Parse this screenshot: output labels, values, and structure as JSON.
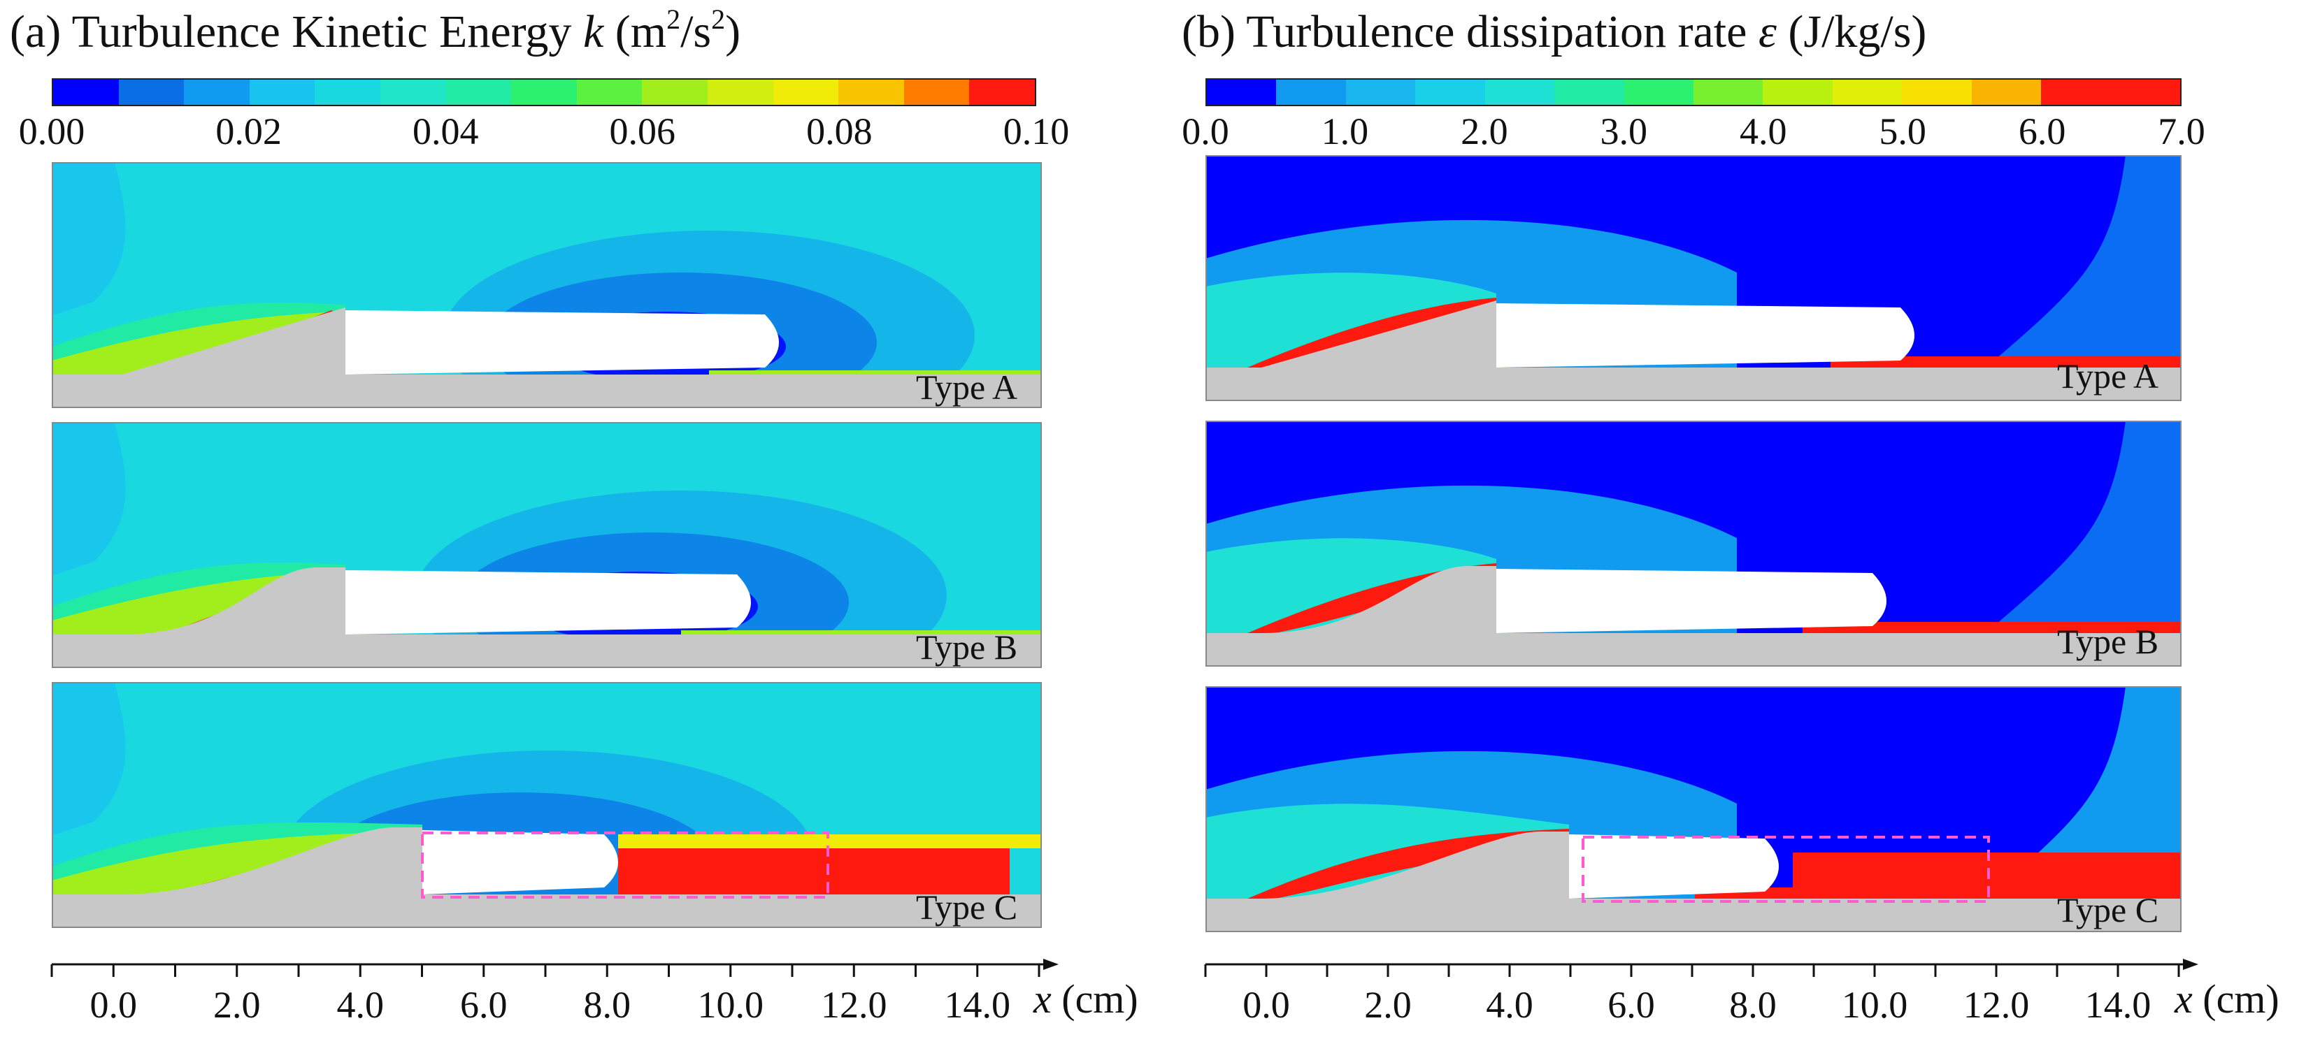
{
  "chart_data": [
    {
      "type": "heatmap",
      "panel": "(a)",
      "title_text": "Turbulence Kinetic Energy",
      "title_symbol": "k",
      "title_unit": "(m2/s2)",
      "colorbar": {
        "range": [
          0.0,
          0.1
        ],
        "levels": 15,
        "tick_labels": [
          "0.00",
          "0.02",
          "0.04",
          "0.06",
          "0.08",
          "0.10"
        ],
        "tick_values": [
          0.0,
          0.02,
          0.04,
          0.06,
          0.08,
          0.1
        ],
        "colors": [
          "#0000ff",
          "#0a6fe6",
          "#109bf0",
          "#19c3f0",
          "#1ad8e0",
          "#1fe6c8",
          "#20eaa4",
          "#2cf070",
          "#5cf040",
          "#a2ee1c",
          "#d2ee10",
          "#f0ec08",
          "#f8c400",
          "#ff7b00",
          "#ff1a10"
        ]
      },
      "cases": [
        "Type A",
        "Type B",
        "Type C"
      ],
      "xaxis": {
        "label": "x",
        "unit": "(cm)",
        "range": [
          -1.0,
          15.0
        ],
        "tick_labels": [
          "0.0",
          "2.0",
          "4.0",
          "6.0",
          "8.0",
          "10.0",
          "12.0",
          "14.0"
        ],
        "tick_values": [
          0,
          2,
          4,
          6,
          8,
          10,
          12,
          14
        ]
      }
    },
    {
      "type": "heatmap",
      "panel": "(b)",
      "title_text": "Turbulence dissipation rate",
      "title_symbol": "ε",
      "title_unit": "(J/kg/s)",
      "colorbar": {
        "range": [
          0.0,
          7.0
        ],
        "levels": 14,
        "tick_labels": [
          "0.0",
          "1.0",
          "2.0",
          "3.0",
          "4.0",
          "5.0",
          "6.0",
          "7.0"
        ],
        "tick_values": [
          0,
          1,
          2,
          3,
          4,
          5,
          6,
          7
        ],
        "colors": [
          "#0000ff",
          "#109bf0",
          "#19b6f0",
          "#1ad0e8",
          "#1ee0d4",
          "#20eaa4",
          "#2cf070",
          "#78f030",
          "#b8f010",
          "#e0ee08",
          "#f8e000",
          "#f8b400",
          "#ff1a10",
          "#ff1a10"
        ]
      },
      "cases": [
        "Type A",
        "Type B",
        "Type C"
      ],
      "xaxis": {
        "label": "x",
        "unit": "(cm)",
        "range": [
          -1.0,
          15.0
        ],
        "tick_labels": [
          "0.0",
          "2.0",
          "4.0",
          "6.0",
          "8.0",
          "10.0",
          "12.0",
          "14.0"
        ],
        "tick_values": [
          0,
          2,
          4,
          6,
          8,
          10,
          12,
          14
        ]
      }
    }
  ]
}
